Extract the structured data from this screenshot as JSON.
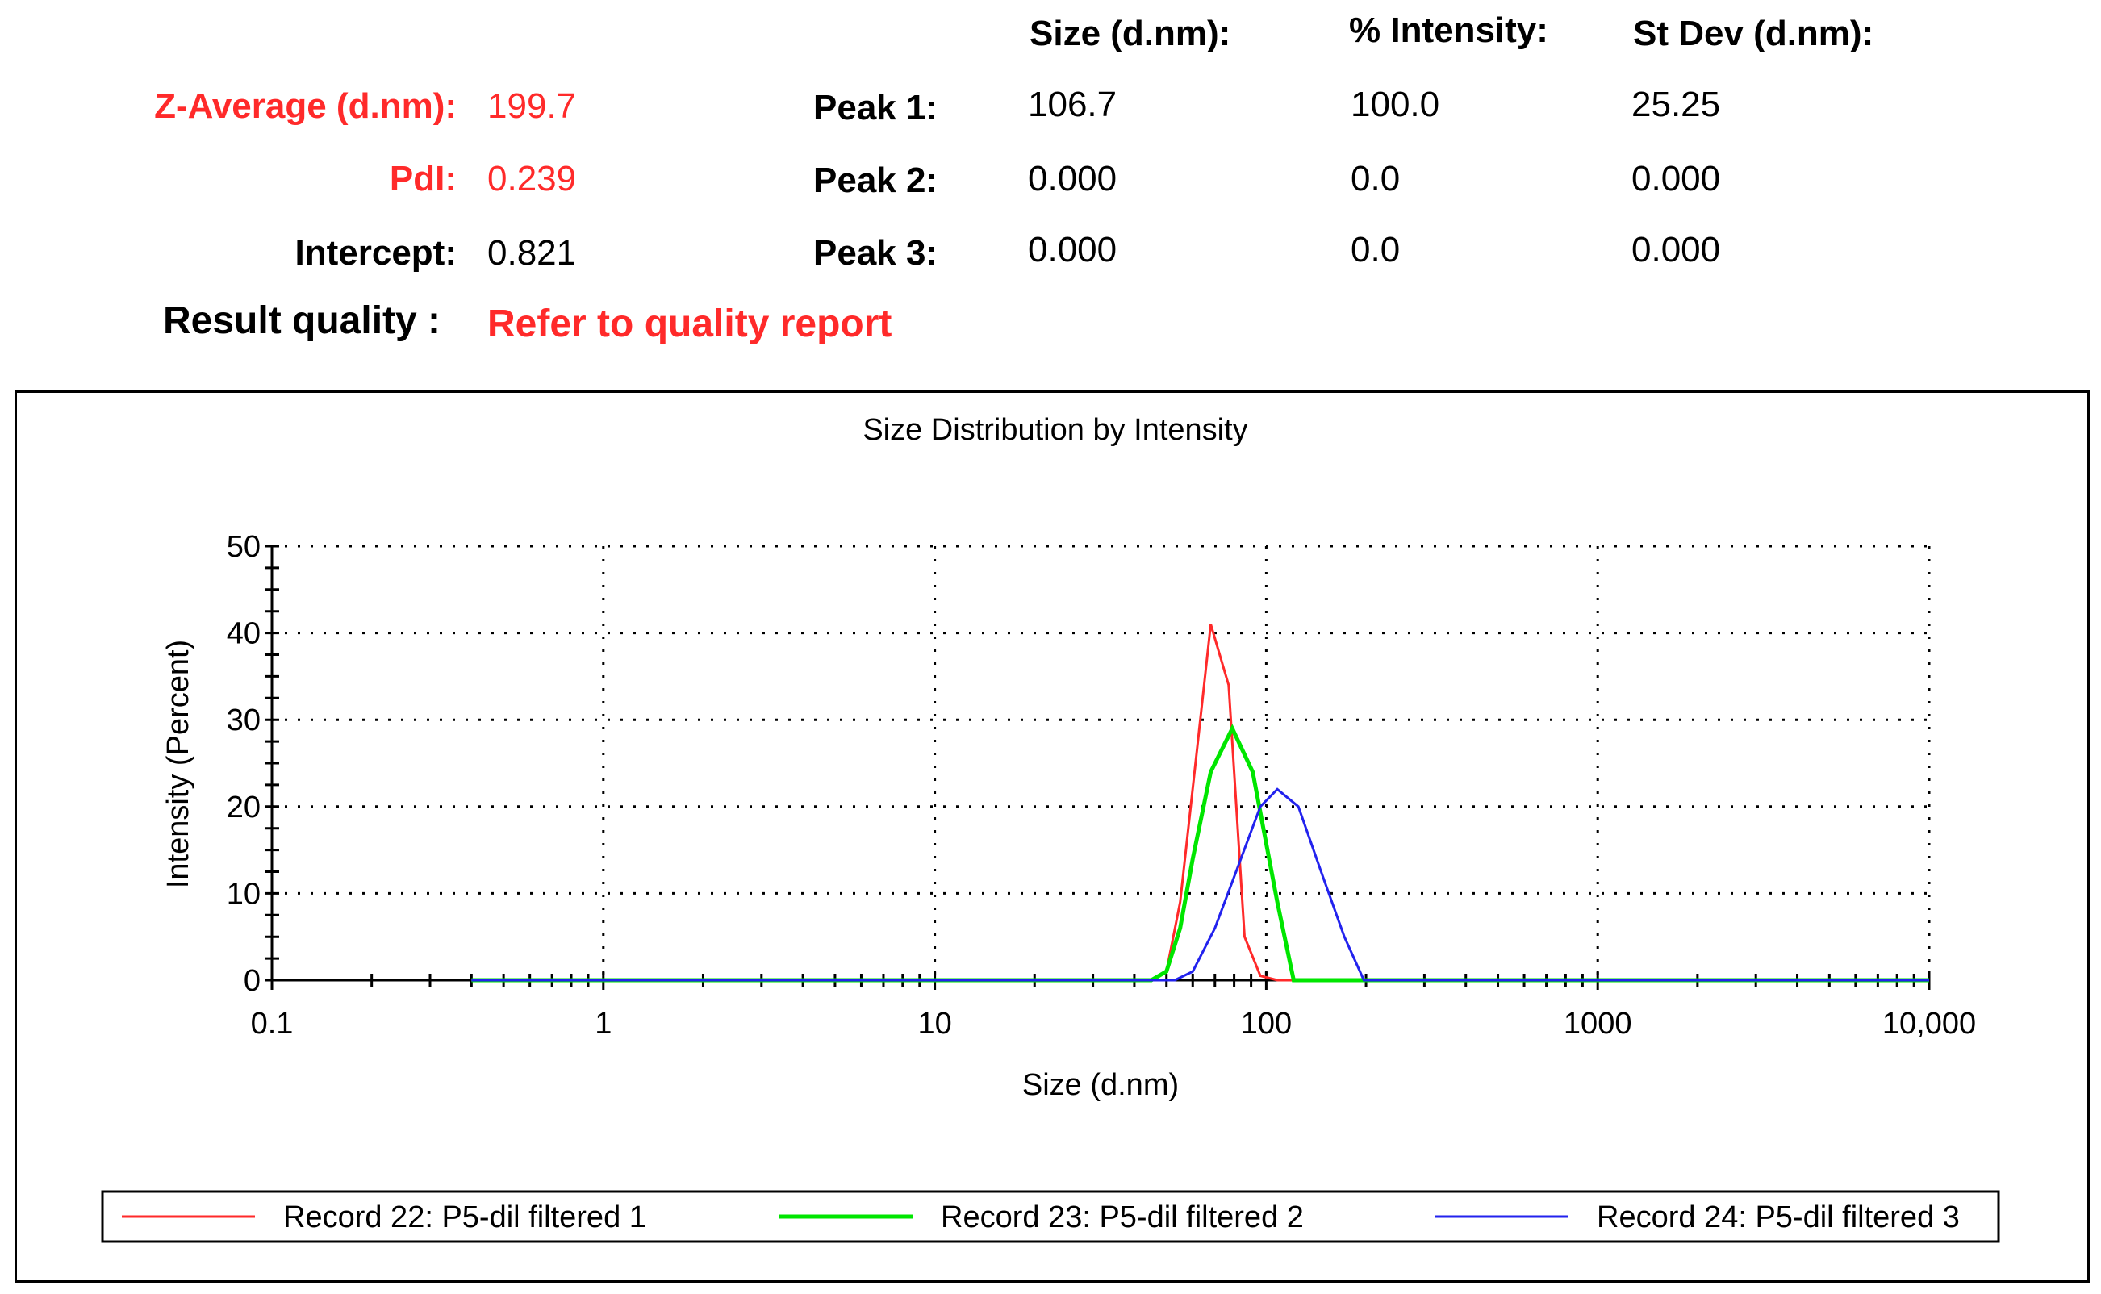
{
  "colors": {
    "red": "#ff2a2a",
    "green": "#00e600",
    "blue": "#2222ee",
    "label_red": "#ff2a2a"
  },
  "summary": {
    "z_average_label": "Z-Average (d.nm):",
    "z_average_value": "199.7",
    "pdi_label": "PdI:",
    "pdi_value": "0.239",
    "intercept_label": "Intercept:",
    "intercept_value": "0.821",
    "result_quality_label": "Result quality :",
    "result_quality_value": "Refer to quality report"
  },
  "peaks": {
    "headers": [
      "Size (d.nm):",
      "% Intensity:",
      "St Dev (d.nm):"
    ],
    "rows": [
      {
        "label": "Peak 1:",
        "size": "106.7",
        "intensity": "100.0",
        "stdev": "25.25"
      },
      {
        "label": "Peak 2:",
        "size": "0.000",
        "intensity": "0.0",
        "stdev": "0.000"
      },
      {
        "label": "Peak 3:",
        "size": "0.000",
        "intensity": "0.0",
        "stdev": "0.000"
      }
    ]
  },
  "chart_data": {
    "type": "line",
    "title": "Size Distribution by Intensity",
    "xlabel": "Size (d.nm)",
    "ylabel": "Intensity (Percent)",
    "xscale": "log",
    "xlim": [
      0.1,
      10000
    ],
    "ylim": [
      0,
      50
    ],
    "x_ticks": [
      0.1,
      1,
      10,
      100,
      1000,
      10000
    ],
    "x_tick_labels": [
      "0.1",
      "1",
      "10",
      "100",
      "1000",
      "10,000"
    ],
    "y_ticks": [
      0,
      10,
      20,
      30,
      40,
      50
    ],
    "y_tick_labels": [
      "0",
      "10",
      "20",
      "30",
      "40",
      "50"
    ],
    "grid": true,
    "legend_position": "bottom",
    "series": [
      {
        "name": "Record 22: P5-dil filtered 1",
        "color": "#ff2a2a",
        "width": 3,
        "x": [
          0.4,
          45,
          50,
          55,
          62,
          68,
          77,
          86,
          96,
          108,
          10000
        ],
        "y": [
          0,
          0,
          1,
          9,
          27,
          41,
          34,
          5,
          0.5,
          0,
          0
        ]
      },
      {
        "name": "Record 23: P5-dil filtered 2",
        "color": "#00e600",
        "width": 5,
        "x": [
          0.4,
          45,
          50,
          55,
          60,
          68,
          79,
          91,
          108,
          121,
          10000
        ],
        "y": [
          0,
          0,
          1,
          6,
          14,
          24,
          29,
          24,
          9,
          0,
          0
        ]
      },
      {
        "name": "Record 24: P5-dil filtered 3",
        "color": "#2222ee",
        "width": 3,
        "x": [
          0.4,
          53,
          60,
          70,
          82,
          96,
          108,
          125,
          148,
          172,
          197,
          10000
        ],
        "y": [
          0,
          0,
          1,
          6,
          13,
          20,
          22,
          20,
          12,
          5,
          0,
          0
        ]
      }
    ]
  }
}
